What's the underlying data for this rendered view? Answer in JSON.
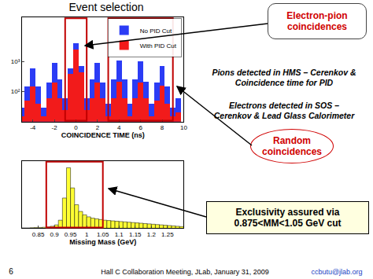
{
  "slide": {
    "title": "Event selection",
    "electron_pion": [
      "Electron-pion",
      "coincidences"
    ],
    "pions": [
      "Pions detected in HMS – Cerenkov &",
      "Coincidence time for PID"
    ],
    "electrons": [
      "Electrons detected in SOS –",
      "Cerenkov & Lead Glass Calorimeter"
    ],
    "random": [
      "Random",
      "coincidences"
    ],
    "exclusivity": [
      "Exclusivity assured via",
      "0.875<MM<1.05 GeV cut"
    ],
    "footer": {
      "page": "6",
      "meeting": "Hall C Collaboration Meeting, JLab, January 31, 2009",
      "email": "ccbutu@jlab.org"
    }
  },
  "chart_data": [
    {
      "type": "histogram",
      "x_label": "COINCIDENCE TIME (ns)",
      "bins": [
        -5.25,
        -4.75,
        -4.25,
        -3.75,
        -3.25,
        -2.75,
        -2.25,
        -1.75,
        -1.25,
        -0.75,
        -0.25,
        0.25,
        0.75,
        1.25,
        1.75,
        2.25,
        2.75,
        3.25,
        3.75,
        4.25,
        4.75,
        5.25,
        5.75,
        6.25,
        6.75,
        7.25,
        7.75,
        8.25,
        8.75,
        9.25,
        9.75
      ],
      "series": [
        {
          "name": "No PID Cut",
          "color": "#2b3cf5",
          "values": [
            30,
            150,
            600,
            150,
            30,
            200,
            900,
            250,
            60,
            600,
            4000,
            700,
            60,
            250,
            900,
            200,
            40,
            250,
            1100,
            250,
            40,
            250,
            1000,
            220,
            40,
            200,
            700,
            150,
            30,
            60
          ]
        },
        {
          "name": "With PID Cut",
          "color": "#f21b1b",
          "values": [
            15,
            50,
            150,
            40,
            15,
            60,
            200,
            60,
            25,
            400,
            2500,
            450,
            25,
            60,
            200,
            60,
            15,
            60,
            220,
            60,
            15,
            60,
            200,
            60,
            15,
            50,
            160,
            40,
            15,
            20
          ]
        }
      ],
      "xlim": [
        -5,
        10
      ],
      "xticks": [
        -4,
        -2,
        0,
        2,
        4,
        6,
        8,
        10
      ],
      "ylim": [
        10,
        30000
      ],
      "yticks": [
        {
          "value": 100,
          "label": "10²"
        },
        {
          "value": 1000,
          "label": "10³"
        }
      ],
      "log": "y",
      "legend": "top right",
      "grid": false,
      "highlight": [
        [
          -1,
          1
        ],
        [
          3,
          9
        ]
      ]
    },
    {
      "type": "histogram",
      "x_label": "Missing Mass (GeV)",
      "bins": [
        0.8,
        0.8125,
        0.825,
        0.8375,
        0.85,
        0.8625,
        0.875,
        0.8875,
        0.9,
        0.9125,
        0.925,
        0.9375,
        0.95,
        0.9625,
        0.975,
        0.9875,
        1,
        1.0125,
        1.025,
        1.0375,
        1.05,
        1.0625,
        1.075,
        1.0875,
        1.1,
        1.1125,
        1.125,
        1.1375,
        1.15,
        1.1625,
        1.175,
        1.1875,
        1.2,
        1.2125,
        1.225,
        1.2375,
        1.25,
        1.2625,
        1.275,
        1.2875,
        1.3
      ],
      "values": [
        5,
        5,
        8,
        10,
        12,
        15,
        20,
        30,
        50,
        120,
        450,
        900,
        600,
        350,
        250,
        200,
        170,
        150,
        140,
        130,
        120,
        115,
        110,
        105,
        100,
        95,
        90,
        85,
        80,
        75,
        70,
        65,
        60,
        55,
        50,
        45,
        40,
        35,
        30,
        25
      ],
      "color": "#ffff33",
      "xlim": [
        0.8,
        1.3
      ],
      "xticks": [
        0.85,
        0.9,
        0.95,
        1,
        1.05,
        1.1,
        1.15,
        1.2,
        1.25
      ],
      "ylim": [
        0,
        1000
      ],
      "tick_labels": "x",
      "grid": false,
      "highlight": [
        [
          0.875,
          1.05
        ]
      ]
    }
  ]
}
